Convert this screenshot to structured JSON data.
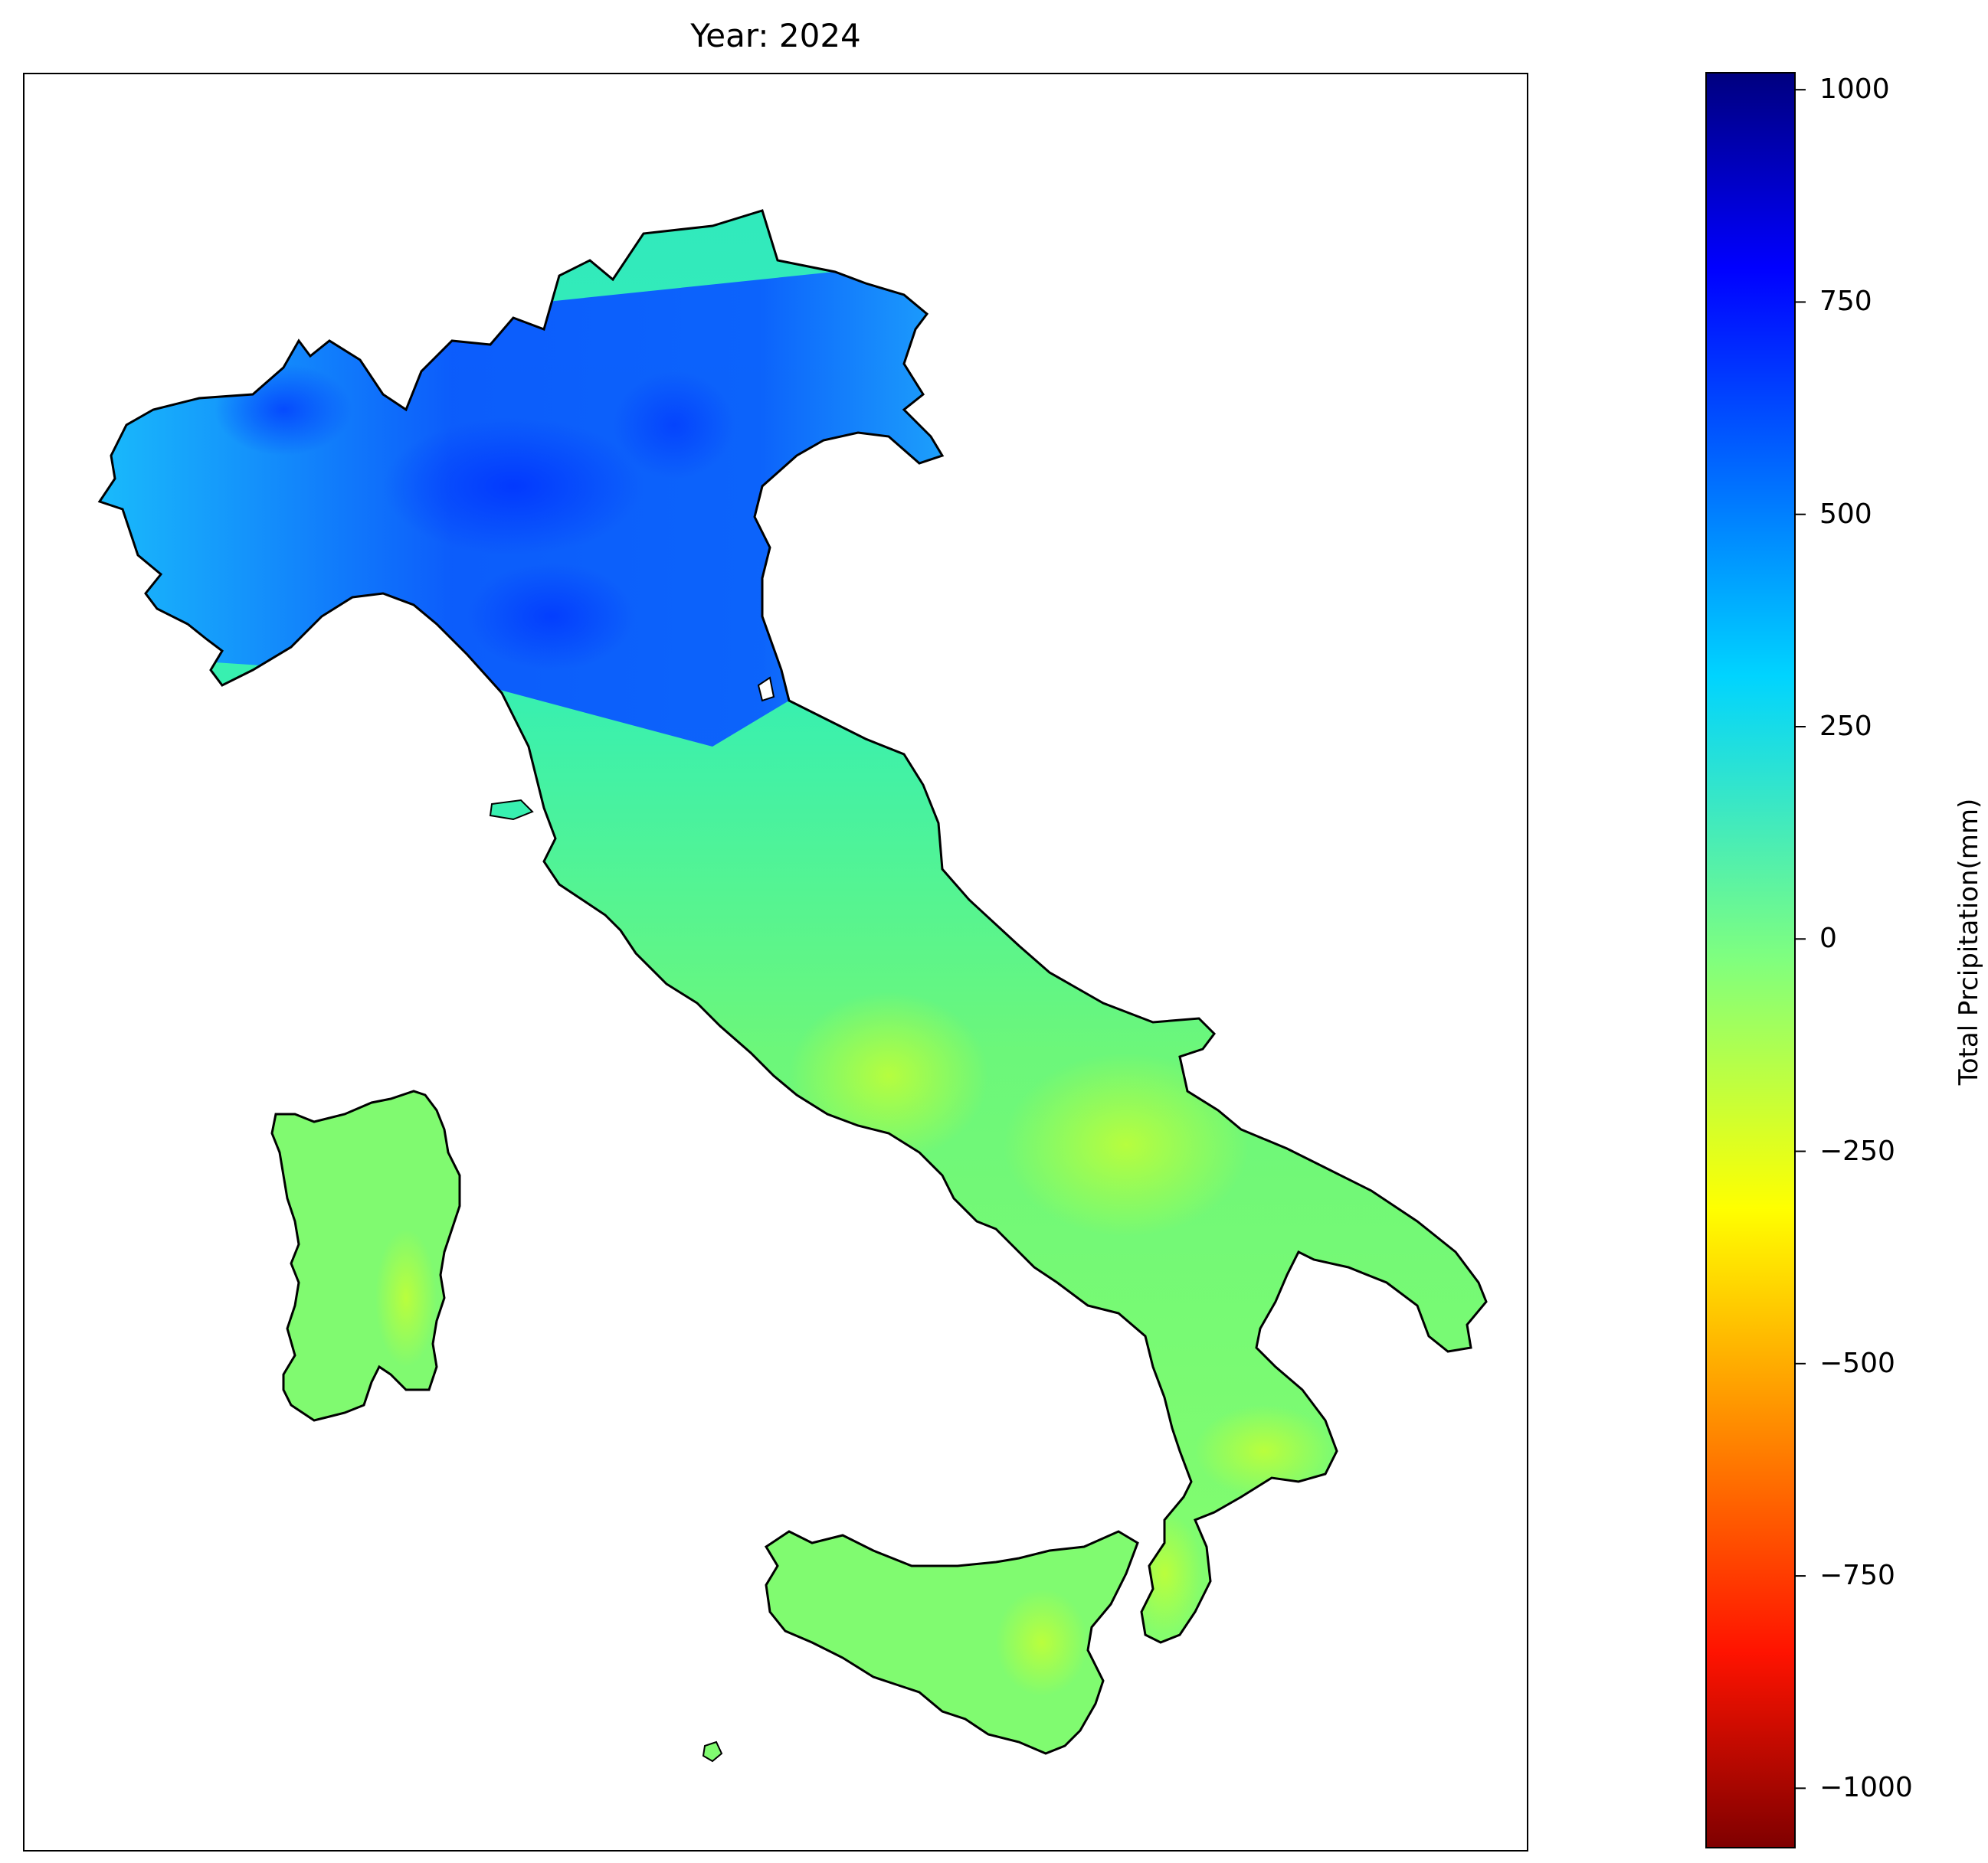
{
  "map": {
    "title": "Year: 2024",
    "region_colors": {
      "italy": "#60f585",
      "sardinia": "#8cff6a",
      "sicily": "#8dff66",
      "po_valley_high": "#0a4cff",
      "alps_medium": "#1aa0ff",
      "outline": "#000000"
    }
  },
  "colorbar": {
    "label": "Total Prcipitation(mm)",
    "colormap": "jet_r",
    "range": [
      -1070,
      1020
    ],
    "ticks": [
      {
        "value": 1000,
        "label": "1000"
      },
      {
        "value": 750,
        "label": "750"
      },
      {
        "value": 500,
        "label": "500"
      },
      {
        "value": 250,
        "label": "250"
      },
      {
        "value": 0,
        "label": "0"
      },
      {
        "value": -250,
        "label": "−250"
      },
      {
        "value": -500,
        "label": "−500"
      },
      {
        "value": -750,
        "label": "−750"
      },
      {
        "value": -1000,
        "label": "−1000"
      }
    ]
  }
}
